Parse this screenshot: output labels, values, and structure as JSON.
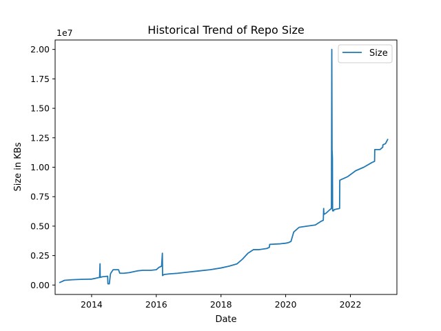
{
  "chart_data": {
    "type": "line",
    "title": "Historical Trend of Repo Size",
    "xlabel": "Date",
    "ylabel": "Size in KBs",
    "y_scale_label": "1e7",
    "xlim": [
      "2012-11-15",
      "2023-06-10"
    ],
    "ylim": [
      -800000,
      20800000
    ],
    "x_ticks": [
      "2014",
      "2016",
      "2018",
      "2020",
      "2022"
    ],
    "y_ticks": [
      "0.00",
      "0.25",
      "0.50",
      "0.75",
      "1.00",
      "1.25",
      "1.50",
      "1.75",
      "2.00"
    ],
    "grid": false,
    "legend_position": "top-right",
    "color": "#1f77b4",
    "series": [
      {
        "name": "Size",
        "x": [
          "2013-01-01",
          "2013-02-01",
          "2013-03-01",
          "2013-06-01",
          "2013-09-01",
          "2013-12-15",
          "2014-01-01",
          "2014-02-01",
          "2014-03-01",
          "2014-04-01",
          "2014-04-06",
          "2014-04-08",
          "2014-05-01",
          "2014-06-01",
          "2014-07-01",
          "2014-07-04",
          "2014-07-20",
          "2014-08-01",
          "2014-08-05",
          "2014-09-01",
          "2014-09-10",
          "2014-11-01",
          "2014-11-15",
          "2015-01-01",
          "2015-03-01",
          "2015-06-01",
          "2015-08-01",
          "2015-11-01",
          "2016-01-01",
          "2016-02-01",
          "2016-03-01",
          "2016-03-10",
          "2016-03-12",
          "2016-03-14",
          "2016-03-20",
          "2016-04-01",
          "2016-06-01",
          "2016-09-01",
          "2017-01-01",
          "2017-05-01",
          "2017-09-01",
          "2018-01-01",
          "2018-04-01",
          "2018-07-01",
          "2018-09-01",
          "2018-11-01",
          "2019-01-01",
          "2019-03-01",
          "2019-06-01",
          "2019-07-01",
          "2019-07-05",
          "2019-11-01",
          "2020-01-01",
          "2020-02-01",
          "2020-03-01",
          "2020-04-01",
          "2020-06-01",
          "2020-09-01",
          "2020-12-01",
          "2021-02-01",
          "2021-03-01",
          "2021-03-05",
          "2021-03-08",
          "2021-04-01",
          "2021-05-15",
          "2021-06-01",
          "2021-06-05",
          "2021-06-08",
          "2021-06-12",
          "2021-06-14",
          "2021-06-18",
          "2021-06-25",
          "2021-07-01",
          "2021-09-01",
          "2021-09-03",
          "2021-12-01",
          "2022-03-01",
          "2022-06-01",
          "2022-09-01",
          "2022-10-01",
          "2022-10-03",
          "2022-12-01",
          "2023-01-01",
          "2023-01-03",
          "2023-02-01",
          "2023-03-01"
        ],
        "values": [
          200000,
          300000,
          400000,
          450000,
          480000,
          500000,
          500000,
          550000,
          600000,
          650000,
          1800000,
          650000,
          700000,
          720000,
          750000,
          100000,
          100000,
          900000,
          1000000,
          1300000,
          1300000,
          1300000,
          1000000,
          1000000,
          1050000,
          1200000,
          1250000,
          1250000,
          1300000,
          1500000,
          1600000,
          2700000,
          800000,
          850000,
          850000,
          900000,
          950000,
          1000000,
          1100000,
          1200000,
          1300000,
          1450000,
          1600000,
          1800000,
          2200000,
          2700000,
          3000000,
          3000000,
          3100000,
          3200000,
          3450000,
          3500000,
          3550000,
          3600000,
          3700000,
          4500000,
          4900000,
          5000000,
          5100000,
          5400000,
          5500000,
          6500000,
          6000000,
          6100000,
          6400000,
          6500000,
          20000000,
          11500000,
          10800000,
          6300000,
          6300000,
          6300000,
          6400000,
          6500000,
          8900000,
          9200000,
          9700000,
          10000000,
          10400000,
          10500000,
          11500000,
          11500000,
          11700000,
          11900000,
          12000000,
          12400000
        ]
      }
    ]
  }
}
